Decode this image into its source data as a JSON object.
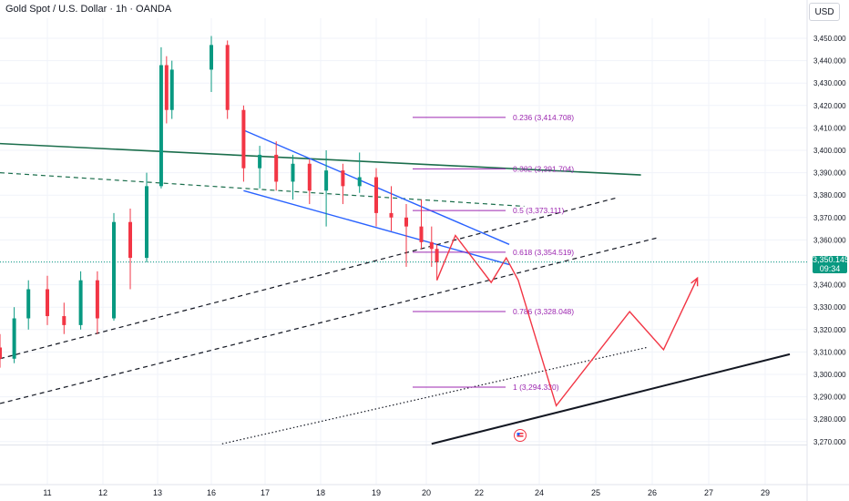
{
  "header": {
    "title": "Gold Spot / U.S. Dollar · 1h · OANDA",
    "currency": "USD"
  },
  "colors": {
    "up": "#089981",
    "down": "#f23645",
    "fib": "#9c27b0",
    "trend_green": "#1b6e4c",
    "channel_blue": "#2962ff",
    "projection": "#f23645",
    "axis_text": "#131722"
  },
  "price_tag": {
    "price": "3,350.145",
    "countdown": "09:34"
  },
  "chart_data": {
    "type": "candlestick",
    "title": "Gold Spot / U.S. Dollar · 1h · OANDA",
    "ylim": [
      3262,
      3458
    ],
    "y_ticks": [
      "3,270.000",
      "3,280.000",
      "3,290.000",
      "3,300.000",
      "3,310.000",
      "3,320.000",
      "3,330.000",
      "3,340.000",
      "3,350.000",
      "3,360.000",
      "3,370.000",
      "3,380.000",
      "3,390.000",
      "3,400.000",
      "3,410.000",
      "3,420.000",
      "3,430.000",
      "3,440.000",
      "3,450.000"
    ],
    "x_ticks": [
      "11",
      "12",
      "13",
      "16",
      "17",
      "18",
      "19",
      "20",
      "22",
      "24",
      "25",
      "26",
      "27",
      "29"
    ],
    "last_price": 3350.145,
    "candles": [
      {
        "day": 10.0,
        "o": 3312,
        "h": 3318,
        "l": 3303,
        "c": 3307
      },
      {
        "day": 10.3,
        "o": 3307,
        "h": 3330,
        "l": 3305,
        "c": 3325
      },
      {
        "day": 10.6,
        "o": 3325,
        "h": 3342,
        "l": 3320,
        "c": 3338
      },
      {
        "day": 11.0,
        "o": 3338,
        "h": 3344,
        "l": 3322,
        "c": 3326
      },
      {
        "day": 11.3,
        "o": 3326,
        "h": 3332,
        "l": 3318,
        "c": 3322
      },
      {
        "day": 11.6,
        "o": 3322,
        "h": 3346,
        "l": 3320,
        "c": 3342
      },
      {
        "day": 11.9,
        "o": 3342,
        "h": 3346,
        "l": 3318,
        "c": 3325
      },
      {
        "day": 12.2,
        "o": 3325,
        "h": 3372,
        "l": 3324,
        "c": 3368
      },
      {
        "day": 12.5,
        "o": 3368,
        "h": 3374,
        "l": 3338,
        "c": 3352
      },
      {
        "day": 12.8,
        "o": 3352,
        "h": 3390,
        "l": 3350,
        "c": 3384
      },
      {
        "day": 13.2,
        "o": 3384,
        "h": 3446,
        "l": 3383,
        "c": 3438
      },
      {
        "day": 13.5,
        "o": 3438,
        "h": 3442,
        "l": 3412,
        "c": 3418
      },
      {
        "day": 13.8,
        "o": 3418,
        "h": 3440,
        "l": 3414,
        "c": 3436
      },
      {
        "day": 16.0,
        "o": 3436,
        "h": 3451,
        "l": 3426,
        "c": 3447
      },
      {
        "day": 16.3,
        "o": 3447,
        "h": 3449,
        "l": 3414,
        "c": 3418
      },
      {
        "day": 16.6,
        "o": 3418,
        "h": 3420,
        "l": 3386,
        "c": 3392
      },
      {
        "day": 16.9,
        "o": 3392,
        "h": 3402,
        "l": 3383,
        "c": 3398
      },
      {
        "day": 17.2,
        "o": 3398,
        "h": 3404,
        "l": 3382,
        "c": 3386
      },
      {
        "day": 17.5,
        "o": 3386,
        "h": 3398,
        "l": 3378,
        "c": 3394
      },
      {
        "day": 17.8,
        "o": 3394,
        "h": 3396,
        "l": 3376,
        "c": 3382
      },
      {
        "day": 18.1,
        "o": 3382,
        "h": 3400,
        "l": 3366,
        "c": 3391
      },
      {
        "day": 18.4,
        "o": 3391,
        "h": 3394,
        "l": 3376,
        "c": 3384
      },
      {
        "day": 18.7,
        "o": 3384,
        "h": 3399,
        "l": 3381,
        "c": 3388
      },
      {
        "day": 19.0,
        "o": 3388,
        "h": 3392,
        "l": 3366,
        "c": 3372
      },
      {
        "day": 19.3,
        "o": 3372,
        "h": 3384,
        "l": 3364,
        "c": 3370
      },
      {
        "day": 19.6,
        "o": 3370,
        "h": 3376,
        "l": 3348,
        "c": 3366
      },
      {
        "day": 19.9,
        "o": 3366,
        "h": 3378,
        "l": 3356,
        "c": 3359
      },
      {
        "day": 20.2,
        "o": 3359,
        "h": 3366,
        "l": 3348,
        "c": 3356
      },
      {
        "day": 20.4,
        "o": 3356,
        "h": 3358,
        "l": 3342,
        "c": 3350
      }
    ],
    "fib_levels": [
      {
        "label": "0.236 (3,414.708)",
        "value": 3414.708
      },
      {
        "label": "0.382 (3,391.704)",
        "value": 3391.704
      },
      {
        "label": "0.5 (3,373.111)",
        "value": 3373.111
      },
      {
        "label": "0.618 (3,354.519)",
        "value": 3354.519
      },
      {
        "label": "0.786 (3,328.048)",
        "value": 3328.048
      },
      {
        "label": "1 (3,294.330)",
        "value": 3294.33
      }
    ],
    "trendlines": [
      {
        "style": "green-solid",
        "from": [
          9.0,
          3403
        ],
        "to": [
          25.8,
          3389
        ]
      },
      {
        "style": "green-dashed",
        "from": [
          9.0,
          3390
        ],
        "to": [
          23.5,
          3375
        ]
      },
      {
        "style": "blue",
        "from": [
          16.6,
          3409
        ],
        "to": [
          23.0,
          3358
        ]
      },
      {
        "style": "blue",
        "from": [
          16.6,
          3382
        ],
        "to": [
          23.0,
          3349
        ]
      },
      {
        "style": "black-dashed",
        "from": [
          9.0,
          3307
        ],
        "to": [
          25.4,
          3379
        ]
      },
      {
        "style": "black-dashed",
        "from": [
          9.0,
          3287
        ],
        "to": [
          26.1,
          3361
        ]
      },
      {
        "style": "black-dotted",
        "from": [
          16.2,
          3269
        ],
        "to": [
          25.9,
          3312
        ]
      },
      {
        "style": "black-solid",
        "from": [
          20.2,
          3269
        ],
        "to": [
          29.9,
          3309
        ]
      }
    ],
    "projection_path": [
      [
        20.4,
        3342
      ],
      [
        21.1,
        3362
      ],
      [
        22.4,
        3341
      ],
      [
        22.9,
        3352
      ],
      [
        23.3,
        3342
      ],
      [
        24.3,
        3286
      ],
      [
        25.6,
        3328
      ],
      [
        26.2,
        3311
      ],
      [
        26.8,
        3343
      ]
    ]
  }
}
